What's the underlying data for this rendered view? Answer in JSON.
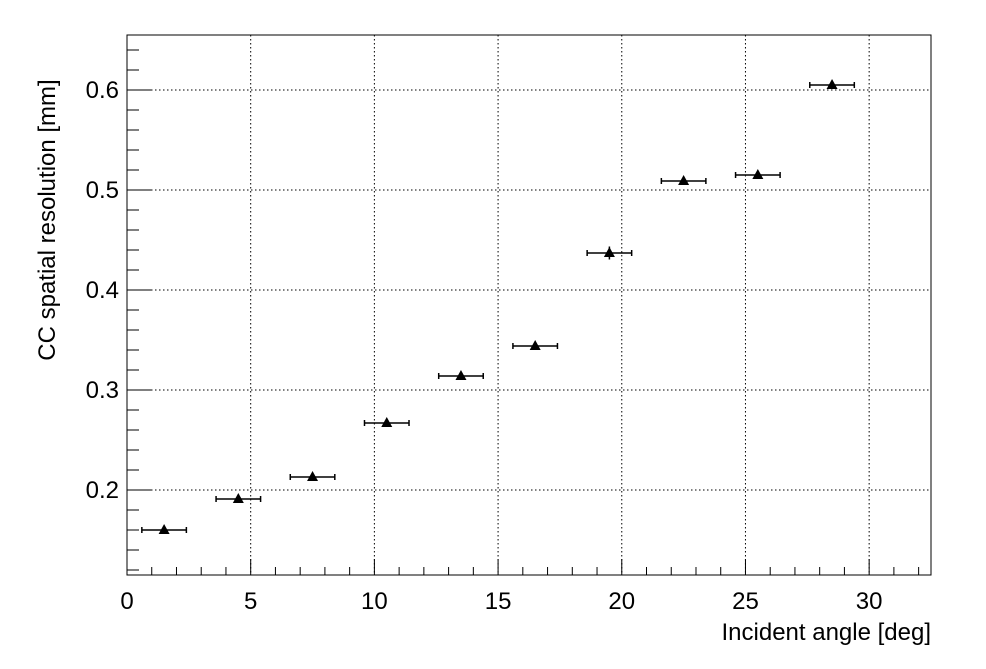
{
  "chart_data": {
    "type": "scatter",
    "xlabel": "Incident angle [deg]",
    "ylabel": "CC spatial resolution [mm]",
    "x": [
      1.5,
      4.5,
      7.5,
      10.5,
      13.5,
      16.5,
      19.5,
      22.5,
      25.5,
      28.5
    ],
    "xerr": [
      0.9,
      0.9,
      0.9,
      0.9,
      0.9,
      0.9,
      0.9,
      0.9,
      0.9,
      0.9
    ],
    "values": [
      0.16,
      0.191,
      0.213,
      0.267,
      0.314,
      0.344,
      0.437,
      0.509,
      0.515,
      0.605
    ],
    "yerr": [
      0.003,
      0.003,
      0.003,
      0.003,
      0.003,
      0.003,
      0.0065,
      0.003,
      0.003,
      0.003
    ],
    "color": "#000000",
    "xlim": [
      0,
      32.5
    ],
    "ylim": [
      0.115,
      0.655
    ],
    "xticks": [
      0,
      5,
      10,
      15,
      20,
      25,
      30
    ],
    "yticks": [
      0.2,
      0.3,
      0.4,
      0.5,
      0.6
    ],
    "grid": true
  }
}
